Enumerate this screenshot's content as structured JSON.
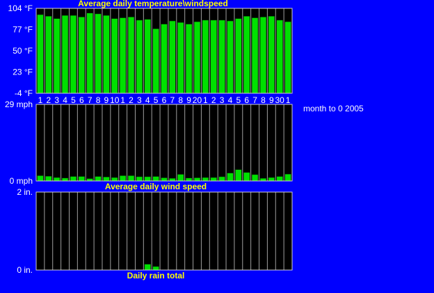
{
  "colors": {
    "background": "#0000ff",
    "panel": "#000000",
    "grid": "#a0a0a0",
    "bar": "#00e000",
    "title": "#ffff00",
    "label": "#ffffff"
  },
  "subtitle": "month to 0 2005",
  "chart_data": [
    {
      "type": "bar",
      "title": "Average daily temperature\\windspeed",
      "ylabel": "",
      "ytick_labels": [
        "104 °F",
        "77 °F",
        "50 °F",
        "23 °F",
        "-4 °F"
      ],
      "ylim": [
        -4,
        104
      ],
      "categories": [
        "1",
        "2",
        "3",
        "4",
        "5",
        "6",
        "7",
        "8",
        "9",
        "10",
        "1",
        "2",
        "3",
        "4",
        "5",
        "6",
        "7",
        "8",
        "9",
        "20",
        "1",
        "2",
        "3",
        "4",
        "5",
        "6",
        "7",
        "8",
        "9",
        "30",
        "1"
      ],
      "values": [
        96,
        94,
        91,
        95,
        95,
        93,
        98,
        97,
        95,
        91,
        92,
        93,
        89,
        90,
        78,
        84,
        88,
        86,
        84,
        87,
        89,
        89,
        89,
        88,
        91,
        94,
        92,
        93,
        94,
        89,
        87
      ]
    },
    {
      "type": "bar",
      "title": "Average daily wind speed",
      "ytick_labels": [
        "29 mph",
        "0 mph"
      ],
      "ylim": [
        0,
        29
      ],
      "categories": [
        "1",
        "2",
        "3",
        "4",
        "5",
        "6",
        "7",
        "8",
        "9",
        "10",
        "1",
        "2",
        "3",
        "4",
        "5",
        "6",
        "7",
        "8",
        "9",
        "20",
        "1",
        "2",
        "3",
        "4",
        "5",
        "6",
        "7",
        "8",
        "9",
        "30",
        "1"
      ],
      "values": [
        2.0,
        1.8,
        1.3,
        1.1,
        1.7,
        1.7,
        0.9,
        1.7,
        1.5,
        1.3,
        2.0,
        2.0,
        1.6,
        1.6,
        1.7,
        1.2,
        1.0,
        2.5,
        1.1,
        1.2,
        1.3,
        1.3,
        1.6,
        3.0,
        4.3,
        3.2,
        2.4,
        1.0,
        1.3,
        1.7,
        2.6
      ]
    },
    {
      "type": "bar",
      "title": "Daily rain total",
      "ytick_labels": [
        "2 in.",
        "0 in."
      ],
      "ylim": [
        0,
        2
      ],
      "categories": [
        "1",
        "2",
        "3",
        "4",
        "5",
        "6",
        "7",
        "8",
        "9",
        "10",
        "1",
        "2",
        "3",
        "4",
        "5",
        "6",
        "7",
        "8",
        "9",
        "20",
        "1",
        "2",
        "3",
        "4",
        "5",
        "6",
        "7",
        "8",
        "9",
        "30",
        "1"
      ],
      "values": [
        0,
        0,
        0,
        0,
        0,
        0,
        0,
        0,
        0,
        0,
        0,
        0,
        0,
        0.15,
        0.09,
        0,
        0,
        0,
        0,
        0,
        0,
        0,
        0,
        0,
        0,
        0,
        0,
        0,
        0,
        0,
        0
      ]
    }
  ]
}
